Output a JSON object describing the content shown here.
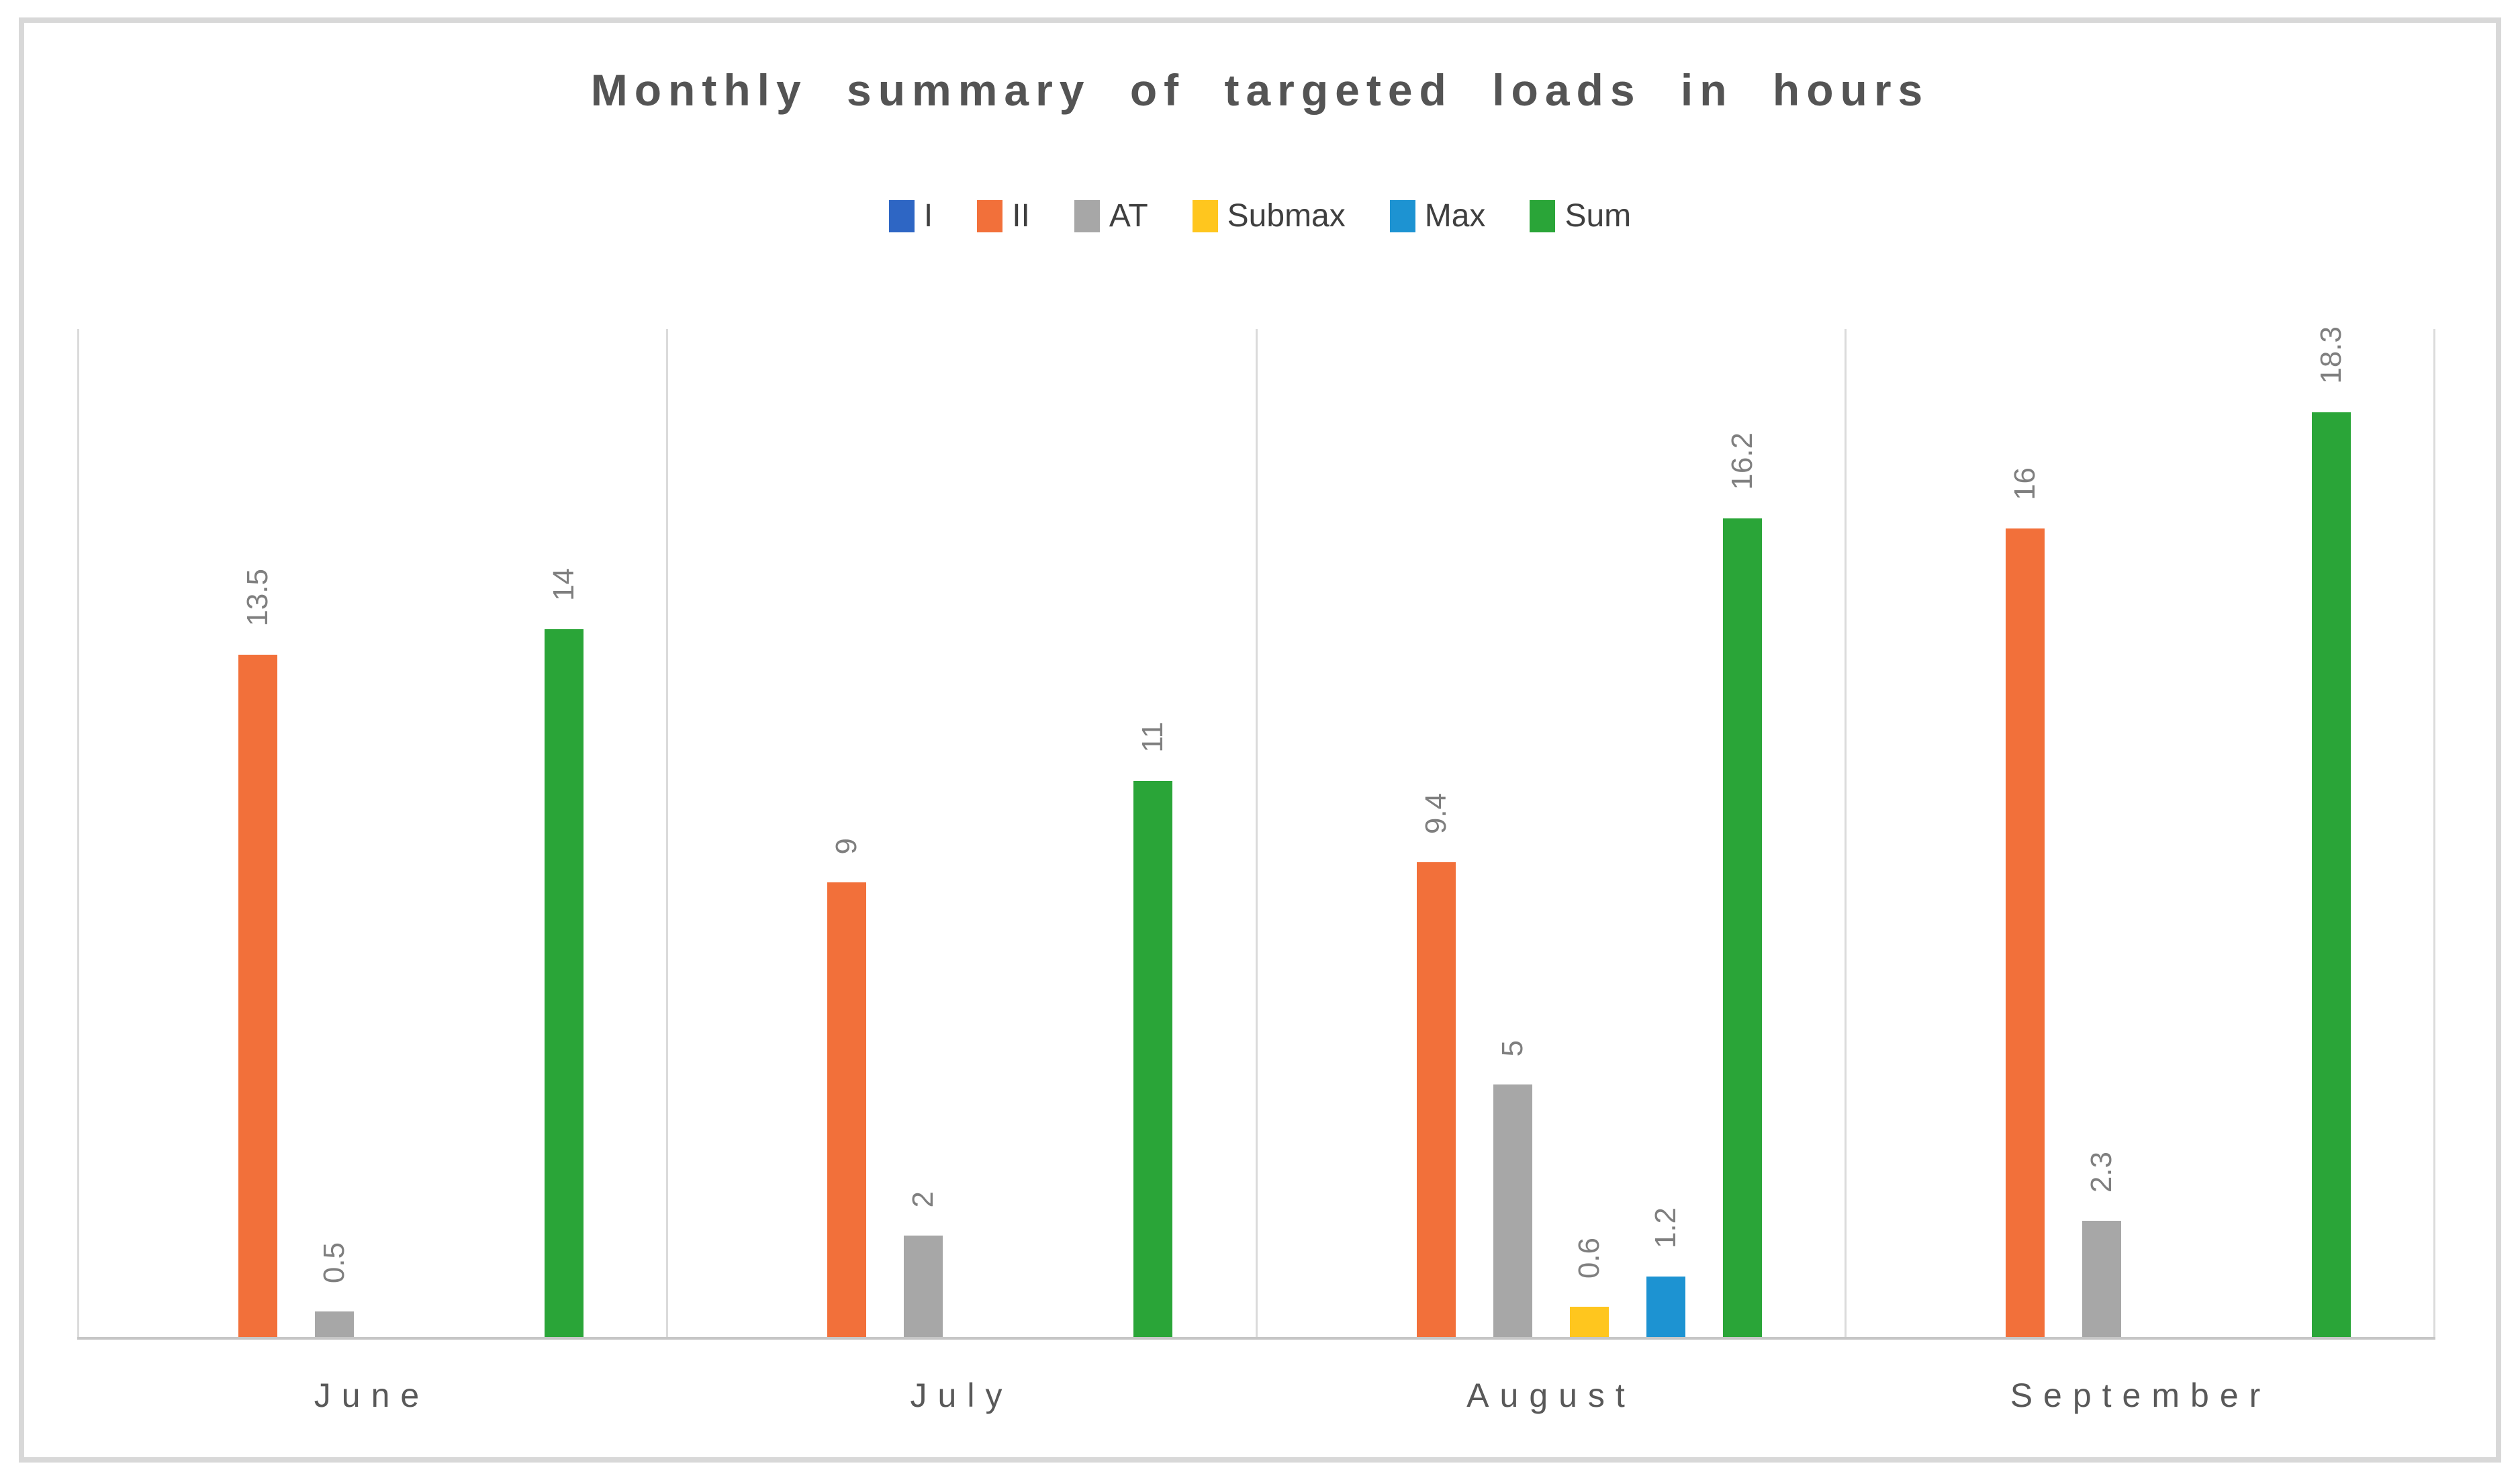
{
  "chart_data": {
    "type": "bar",
    "title": "Monthly summary of targeted loads in hours",
    "xlabel": "",
    "ylabel": "",
    "ylim": [
      0,
      20
    ],
    "grid": "vertical category separators only, no horizontal gridlines, no y-axis labels",
    "legend_position": "top-center",
    "value_labels": "above bars, rotated 90deg reading bottom-to-top, gray",
    "categories": [
      "June",
      "July",
      "August",
      "September"
    ],
    "series": [
      {
        "name": "I",
        "color": "#2e66c4",
        "values": [
          null,
          null,
          null,
          null
        ]
      },
      {
        "name": "II",
        "color": "#f2703a",
        "values": [
          13.5,
          9,
          9.4,
          16
        ]
      },
      {
        "name": "AT",
        "color": "#a7a7a7",
        "values": [
          0.5,
          2,
          5,
          2.3
        ]
      },
      {
        "name": "Submax",
        "color": "#ffc61e",
        "values": [
          null,
          null,
          0.6,
          null
        ]
      },
      {
        "name": "Max",
        "color": "#1d93d2",
        "values": [
          null,
          null,
          1.2,
          null
        ]
      },
      {
        "name": "Sum",
        "color": "#2aa538",
        "values": [
          14,
          11,
          16.2,
          18.3
        ]
      }
    ]
  },
  "style_colors": {
    "title_text": "#545454",
    "legend_text": "#3f3f3f",
    "value_label_text": "#7f7f7f",
    "category_text": "#595959",
    "axis_line": "#c6c6c6",
    "gridline": "#dbdbdb",
    "frame_border": "#d8d8d8",
    "background": "#ffffff"
  }
}
